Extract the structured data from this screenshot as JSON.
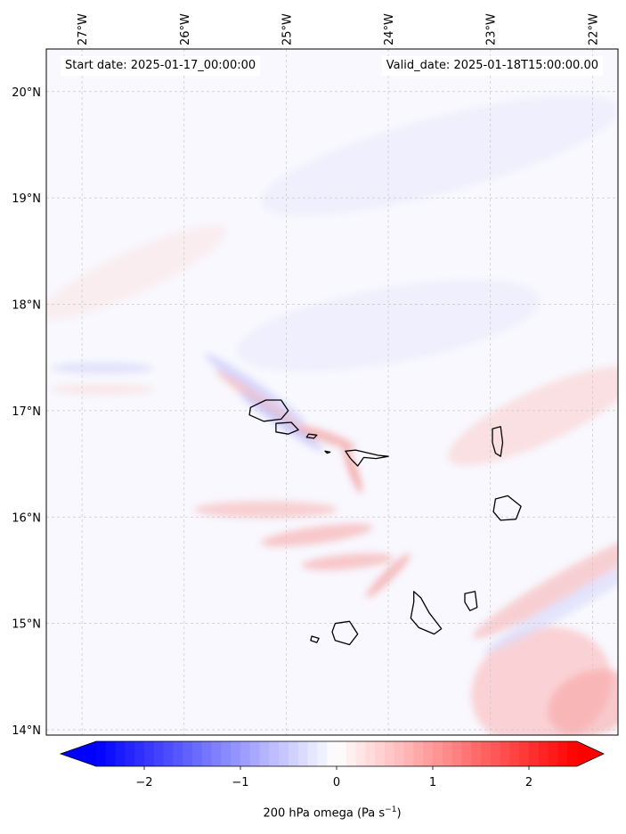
{
  "header": {
    "start_date": "Start date: 2025-01-17_00:00:00",
    "valid_date": "Valid_date: 2025-01-18T15:00:00.00"
  },
  "map": {
    "lon_range": [
      -27.35,
      -21.75
    ],
    "lat_range": [
      13.95,
      20.4
    ],
    "lon_ticks": [
      {
        "value": -27,
        "label": "27°W"
      },
      {
        "value": -26,
        "label": "26°W"
      },
      {
        "value": -25,
        "label": "25°W"
      },
      {
        "value": -24,
        "label": "24°W"
      },
      {
        "value": -23,
        "label": "23°W"
      },
      {
        "value": -22,
        "label": "22°W"
      }
    ],
    "lat_ticks": [
      {
        "value": 20,
        "label": "20°N"
      },
      {
        "value": 19,
        "label": "19°N"
      },
      {
        "value": 18,
        "label": "18°N"
      },
      {
        "value": 17,
        "label": "17°N"
      },
      {
        "value": 16,
        "label": "16°N"
      },
      {
        "value": 15,
        "label": "15°N"
      },
      {
        "value": 14,
        "label": "14°N"
      }
    ],
    "gridlines": true,
    "field": "200 hPa omega",
    "islands": [
      {
        "name": "Santo Antão",
        "points": [
          [
            -25.35,
            17.03
          ],
          [
            -25.2,
            17.1
          ],
          [
            -25.05,
            17.1
          ],
          [
            -24.98,
            17.0
          ],
          [
            -25.05,
            16.92
          ],
          [
            -25.22,
            16.9
          ],
          [
            -25.36,
            16.96
          ]
        ]
      },
      {
        "name": "São Vicente",
        "points": [
          [
            -25.1,
            16.88
          ],
          [
            -24.95,
            16.89
          ],
          [
            -24.88,
            16.82
          ],
          [
            -24.98,
            16.78
          ],
          [
            -25.1,
            16.8
          ]
        ]
      },
      {
        "name": "Santa Luzia",
        "points": [
          [
            -24.78,
            16.78
          ],
          [
            -24.7,
            16.77
          ],
          [
            -24.73,
            16.74
          ],
          [
            -24.8,
            16.75
          ]
        ]
      },
      {
        "name": "Ilhéu Raso",
        "points": [
          [
            -24.62,
            16.62
          ],
          [
            -24.57,
            16.61
          ],
          [
            -24.6,
            16.6
          ]
        ]
      },
      {
        "name": "São Nicolau",
        "points": [
          [
            -24.42,
            16.62
          ],
          [
            -24.32,
            16.63
          ],
          [
            -24.1,
            16.58
          ],
          [
            -24.0,
            16.57
          ],
          [
            -24.12,
            16.55
          ],
          [
            -24.24,
            16.56
          ],
          [
            -24.3,
            16.48
          ],
          [
            -24.37,
            16.55
          ]
        ]
      },
      {
        "name": "Sal",
        "points": [
          [
            -22.98,
            16.83
          ],
          [
            -22.9,
            16.85
          ],
          [
            -22.88,
            16.7
          ],
          [
            -22.9,
            16.57
          ],
          [
            -22.95,
            16.6
          ],
          [
            -22.98,
            16.7
          ]
        ]
      },
      {
        "name": "Boa Vista",
        "points": [
          [
            -22.95,
            16.17
          ],
          [
            -22.83,
            16.2
          ],
          [
            -22.7,
            16.1
          ],
          [
            -22.75,
            15.98
          ],
          [
            -22.9,
            15.97
          ],
          [
            -22.97,
            16.05
          ]
        ]
      },
      {
        "name": "Maio",
        "points": [
          [
            -23.25,
            15.28
          ],
          [
            -23.15,
            15.3
          ],
          [
            -23.13,
            15.15
          ],
          [
            -23.2,
            15.12
          ],
          [
            -23.25,
            15.2
          ]
        ]
      },
      {
        "name": "Santiago",
        "points": [
          [
            -23.75,
            15.3
          ],
          [
            -23.68,
            15.24
          ],
          [
            -23.6,
            15.1
          ],
          [
            -23.48,
            14.95
          ],
          [
            -23.55,
            14.9
          ],
          [
            -23.7,
            14.96
          ],
          [
            -23.78,
            15.05
          ],
          [
            -23.75,
            15.2
          ]
        ]
      },
      {
        "name": "Fogo",
        "points": [
          [
            -24.52,
            15.0
          ],
          [
            -24.38,
            15.02
          ],
          [
            -24.3,
            14.9
          ],
          [
            -24.38,
            14.8
          ],
          [
            -24.52,
            14.84
          ],
          [
            -24.55,
            14.92
          ]
        ]
      },
      {
        "name": "Brava",
        "points": [
          [
            -24.75,
            14.88
          ],
          [
            -24.68,
            14.86
          ],
          [
            -24.7,
            14.82
          ],
          [
            -24.76,
            14.84
          ]
        ]
      }
    ],
    "features": [
      {
        "lon": -22.5,
        "lat": 14.4,
        "rx": 0.7,
        "ry": 0.55,
        "rot": -20,
        "color": "#fbb8b8",
        "opacity": 0.6
      },
      {
        "lon": -22.0,
        "lat": 14.25,
        "rx": 0.45,
        "ry": 0.3,
        "rot": -20,
        "color": "#f89a9a",
        "opacity": 0.5
      },
      {
        "lon": -22.3,
        "lat": 15.35,
        "rx": 1.0,
        "ry": 0.12,
        "rot": -30,
        "color": "#f6b4b4",
        "opacity": 0.6
      },
      {
        "lon": -22.2,
        "lat": 15.2,
        "rx": 1.0,
        "ry": 0.08,
        "rot": -30,
        "color": "#dcdcfb",
        "opacity": 0.7
      },
      {
        "lon": -22.5,
        "lat": 16.95,
        "rx": 1.0,
        "ry": 0.25,
        "rot": -25,
        "color": "#fbd6d6",
        "opacity": 0.7
      },
      {
        "lon": -25.2,
        "lat": 16.07,
        "rx": 0.7,
        "ry": 0.08,
        "rot": 0,
        "color": "#f8b6b6",
        "opacity": 0.6
      },
      {
        "lon": -24.7,
        "lat": 15.83,
        "rx": 0.55,
        "ry": 0.08,
        "rot": -8,
        "color": "#f7a9a9",
        "opacity": 0.6
      },
      {
        "lon": -24.4,
        "lat": 15.58,
        "rx": 0.45,
        "ry": 0.07,
        "rot": -5,
        "color": "#f7a6a6",
        "opacity": 0.6
      },
      {
        "lon": -24.0,
        "lat": 15.45,
        "rx": 0.3,
        "ry": 0.05,
        "rot": -45,
        "color": "#f39696",
        "opacity": 0.6
      },
      {
        "lon": -25.3,
        "lat": 17.2,
        "rx": 0.6,
        "ry": 0.06,
        "rot": 35,
        "color": "#c9c9fb",
        "opacity": 0.7
      },
      {
        "lon": -25.2,
        "lat": 17.05,
        "rx": 0.6,
        "ry": 0.05,
        "rot": 35,
        "color": "#f6b6b6",
        "opacity": 0.7
      },
      {
        "lon": -25.05,
        "lat": 16.9,
        "rx": 0.5,
        "ry": 0.05,
        "rot": 35,
        "color": "#c1c1fa",
        "opacity": 0.7
      },
      {
        "lon": -24.6,
        "lat": 16.75,
        "rx": 0.3,
        "ry": 0.05,
        "rot": 20,
        "color": "#f4a0a0",
        "opacity": 0.7
      },
      {
        "lon": -24.35,
        "lat": 16.45,
        "rx": 0.25,
        "ry": 0.04,
        "rot": 70,
        "color": "#f29090",
        "opacity": 0.7
      },
      {
        "lon": -26.8,
        "lat": 17.4,
        "rx": 0.5,
        "ry": 0.05,
        "rot": 0,
        "color": "#d7d7fa",
        "opacity": 0.7
      },
      {
        "lon": -26.8,
        "lat": 17.2,
        "rx": 0.5,
        "ry": 0.05,
        "rot": 0,
        "color": "#fbe0e0",
        "opacity": 0.7
      },
      {
        "lon": -23.5,
        "lat": 19.4,
        "rx": 1.8,
        "ry": 0.35,
        "rot": -15,
        "color": "#e9e9fb",
        "opacity": 0.6
      },
      {
        "lon": -24.0,
        "lat": 17.8,
        "rx": 1.5,
        "ry": 0.35,
        "rot": -10,
        "color": "#e9e9fb",
        "opacity": 0.6
      },
      {
        "lon": -26.5,
        "lat": 18.3,
        "rx": 1.0,
        "ry": 0.2,
        "rot": -25,
        "color": "#fbe6e6",
        "opacity": 0.6
      }
    ]
  },
  "colorbar": {
    "vmin": -2.5,
    "vmax": 2.5,
    "ticks": [
      {
        "value": -2,
        "label": "−2"
      },
      {
        "value": -1,
        "label": "−1"
      },
      {
        "value": 0,
        "label": "0"
      },
      {
        "value": 1,
        "label": "1"
      },
      {
        "value": 2,
        "label": "2"
      }
    ],
    "colors": {
      "min": "#0000ff",
      "center": "#ffffff",
      "max": "#ff0000"
    },
    "extend": "both",
    "label_text": "200 hPa omega (Pa s",
    "label_exponent": "−1",
    "label_close": ")"
  }
}
